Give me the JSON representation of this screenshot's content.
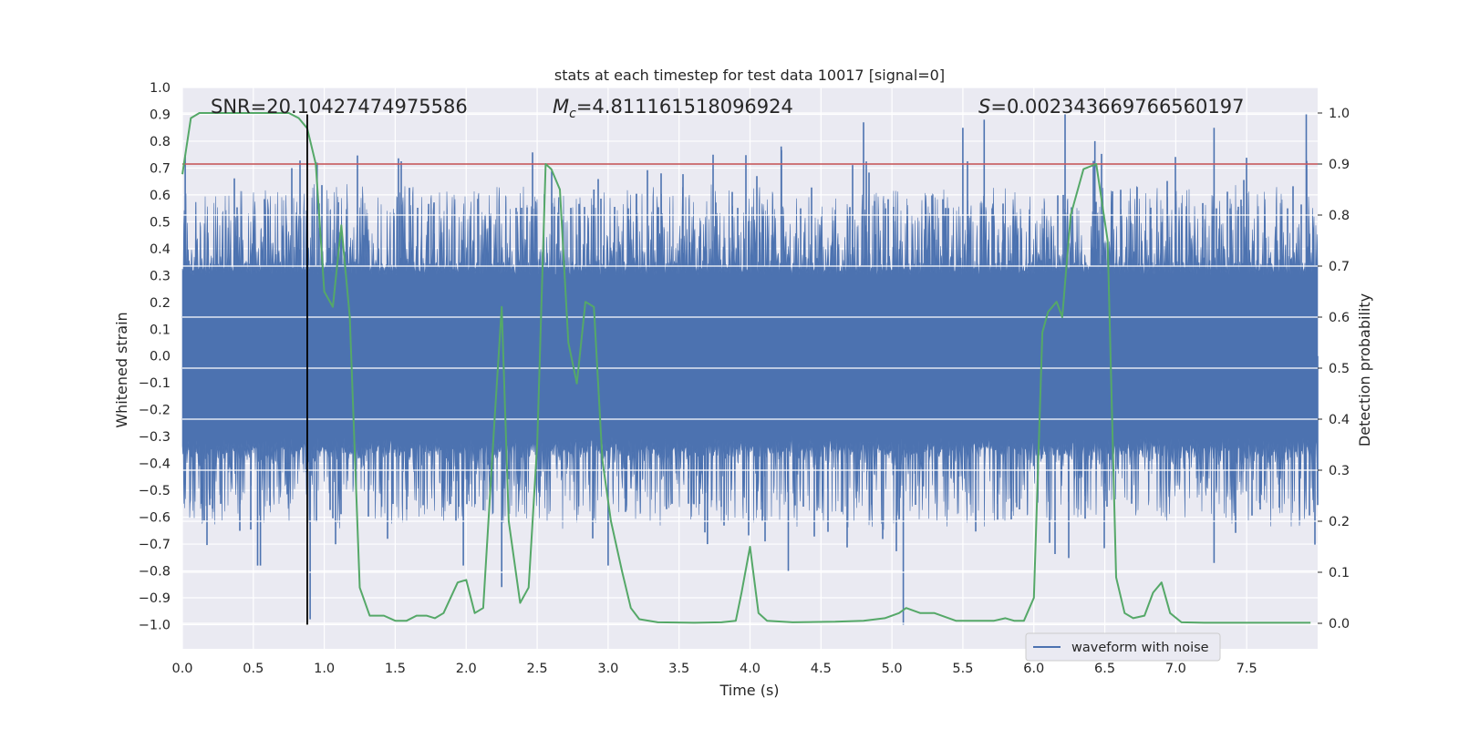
{
  "chart_data": {
    "type": "line",
    "title": "stats at each timestep for test data 10017 [signal=0]",
    "xlabel": "Time (s)",
    "ylabel_left": "Whitened strain",
    "ylabel_right": "Detection probability",
    "xlim": [
      0.0,
      8.0
    ],
    "ylim_left": [
      -1.09,
      1.0
    ],
    "ylim_right": [
      -0.05,
      1.05
    ],
    "x_ticks": [
      "0.0",
      "0.5",
      "1.0",
      "1.5",
      "2.0",
      "2.5",
      "3.0",
      "3.5",
      "4.0",
      "4.5",
      "5.0",
      "5.5",
      "6.0",
      "6.5",
      "7.0",
      "7.5"
    ],
    "y_left_ticks": [
      "1.0",
      "0.9",
      "0.8",
      "0.7",
      "0.6",
      "0.5",
      "0.4",
      "0.3",
      "0.2",
      "0.1",
      "0.0",
      "−0.1",
      "−0.2",
      "−0.3",
      "−0.4",
      "−0.5",
      "−0.6",
      "−0.7",
      "−0.8",
      "−0.9",
      "−1.0"
    ],
    "y_right_ticks": [
      "1.0",
      "0.9",
      "0.8",
      "0.7",
      "0.6",
      "0.5",
      "0.4",
      "0.3",
      "0.2",
      "0.1",
      "0.0"
    ],
    "annotations": {
      "snr": "SNR=20.10427474975586",
      "mc_symbol": "M",
      "mc_sub": "c",
      "mc_value": "=4.811161518096924",
      "s_symbol": "S",
      "s_value": "=0.002343669766560197"
    },
    "legend": {
      "label": "waveform with noise",
      "position": "bottom-right"
    },
    "threshold": {
      "value": 0.9,
      "axis": "right",
      "color": "#c44e52"
    },
    "marker_line": {
      "x": 0.88,
      "y_range": [
        -1.0,
        0.9
      ],
      "color": "#000000"
    },
    "series": [
      {
        "name": "waveform with noise",
        "axis": "left",
        "color": "#4c72b0",
        "sample_rate": 2048,
        "description_stats": {
          "envelope_low": 0.35,
          "envelope_high": 0.65,
          "min": -1.0,
          "max": 0.9
        },
        "peaks": [
          [
            0.02,
            0.75
          ],
          [
            0.53,
            -0.78
          ],
          [
            0.55,
            -0.78
          ],
          [
            0.9,
            -0.98
          ],
          [
            0.95,
            0.72
          ],
          [
            1.98,
            -0.78
          ],
          [
            2.25,
            -0.86
          ],
          [
            2.9,
            0.62
          ],
          [
            3.0,
            -0.78
          ],
          [
            3.7,
            -0.7
          ],
          [
            4.22,
            0.78
          ],
          [
            4.27,
            -0.8
          ],
          [
            4.8,
            0.87
          ],
          [
            5.08,
            -1.0
          ],
          [
            5.5,
            0.85
          ],
          [
            5.65,
            0.88
          ],
          [
            6.22,
            0.9
          ],
          [
            6.43,
            0.8
          ],
          [
            7.27,
            0.85
          ],
          [
            7.27,
            -0.77
          ],
          [
            7.92,
            0.9
          ]
        ]
      },
      {
        "name": "detection probability",
        "axis": "right",
        "color": "#55a868",
        "x": [
          0.0,
          0.06,
          0.12,
          0.3,
          0.6,
          0.75,
          0.82,
          0.88,
          0.94,
          1.0,
          1.06,
          1.12,
          1.18,
          1.25,
          1.32,
          1.42,
          1.5,
          1.58,
          1.65,
          1.72,
          1.78,
          1.84,
          1.94,
          2.0,
          2.06,
          2.12,
          2.2,
          2.25,
          2.3,
          2.38,
          2.44,
          2.5,
          2.56,
          2.6,
          2.66,
          2.72,
          2.78,
          2.84,
          2.9,
          2.96,
          3.02,
          3.1,
          3.16,
          3.22,
          3.35,
          3.6,
          3.8,
          3.9,
          3.94,
          4.0,
          4.06,
          4.12,
          4.3,
          4.6,
          4.8,
          4.95,
          5.05,
          5.1,
          5.2,
          5.3,
          5.45,
          5.6,
          5.72,
          5.8,
          5.86,
          5.93,
          6.0,
          6.06,
          6.1,
          6.16,
          6.2,
          6.26,
          6.35,
          6.44,
          6.52,
          6.58,
          6.64,
          6.7,
          6.78,
          6.84,
          6.9,
          6.96,
          7.04,
          7.2,
          7.5,
          7.95
        ],
        "y": [
          0.88,
          0.99,
          1.0,
          1.0,
          1.0,
          1.0,
          0.99,
          0.97,
          0.9,
          0.65,
          0.62,
          0.78,
          0.6,
          0.07,
          0.015,
          0.015,
          0.005,
          0.005,
          0.015,
          0.015,
          0.01,
          0.02,
          0.08,
          0.085,
          0.02,
          0.03,
          0.4,
          0.62,
          0.2,
          0.04,
          0.07,
          0.35,
          0.9,
          0.89,
          0.85,
          0.55,
          0.47,
          0.63,
          0.62,
          0.32,
          0.2,
          0.1,
          0.03,
          0.008,
          0.002,
          0.001,
          0.002,
          0.005,
          0.06,
          0.15,
          0.02,
          0.005,
          0.002,
          0.003,
          0.005,
          0.01,
          0.02,
          0.03,
          0.02,
          0.02,
          0.005,
          0.005,
          0.005,
          0.01,
          0.005,
          0.005,
          0.05,
          0.57,
          0.61,
          0.63,
          0.6,
          0.8,
          0.89,
          0.9,
          0.75,
          0.09,
          0.02,
          0.01,
          0.015,
          0.06,
          0.08,
          0.02,
          0.002,
          0.001,
          0.001,
          0.001
        ]
      }
    ]
  }
}
